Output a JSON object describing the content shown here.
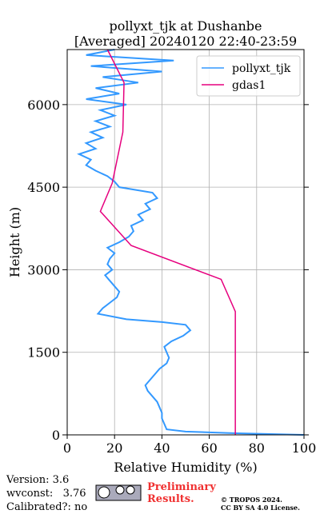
{
  "chart_data": {
    "type": "line",
    "orientation": "vertical",
    "title": "pollyxt_tjk at Dushanbe",
    "subtitle": "[Averaged] 20240120 22:40-23:59",
    "x_label": "Relative Humidity (%)",
    "y_label": "Height (m)",
    "xlim": [
      0,
      100
    ],
    "xticks": [
      0,
      20,
      40,
      60,
      80,
      100
    ],
    "ylim": [
      0,
      7000
    ],
    "yticks": [
      0,
      1500,
      3000,
      4500,
      6000
    ],
    "grid": true,
    "legend": "upper right",
    "series": [
      {
        "name": "pollyxt_tjk",
        "color": "#3399ff",
        "heights": [
          0,
          30,
          60,
          100,
          200,
          300,
          400,
          500,
          600,
          700,
          800,
          900,
          1000,
          1100,
          1200,
          1300,
          1400,
          1500,
          1600,
          1700,
          1800,
          1900,
          2000,
          2050,
          2100,
          2200,
          2300,
          2400,
          2500,
          2600,
          2700,
          2800,
          2900,
          3000,
          3100,
          3200,
          3300,
          3400,
          3500,
          3600,
          3700,
          3800,
          3900,
          4000,
          4100,
          4200,
          4300,
          4400,
          4500,
          4600,
          4700,
          4800,
          4900,
          5000,
          5100,
          5200,
          5300,
          5400,
          5500,
          5600,
          5700,
          5800,
          5900,
          6000,
          6100,
          6200,
          6300,
          6400,
          6500,
          6600,
          6700,
          6800,
          6900,
          7000
        ],
        "values": [
          100,
          70,
          50,
          42,
          41,
          40,
          40,
          39,
          38,
          36,
          34,
          33,
          35,
          37,
          39,
          42,
          43,
          42,
          41,
          44,
          49,
          52,
          50,
          40,
          25,
          13,
          15,
          18,
          21,
          22,
          20,
          18,
          16,
          19,
          17,
          18,
          20,
          17,
          22,
          26,
          28,
          27,
          32,
          30,
          35,
          33,
          38,
          36,
          22,
          20,
          17,
          12,
          8,
          10,
          5,
          12,
          8,
          15,
          10,
          18,
          12,
          20,
          14,
          25,
          8,
          22,
          12,
          30,
          15,
          40,
          10,
          45,
          8,
          20
        ]
      },
      {
        "name": "gdas1",
        "color": "#e6007e",
        "heights": [
          0,
          2240,
          2825,
          3440,
          4060,
          4570,
          5500,
          6400,
          7000
        ],
        "values": [
          71,
          71,
          65,
          27,
          14,
          19,
          23.5,
          24,
          17
        ]
      }
    ]
  },
  "footer": {
    "version": "Version: 3.6",
    "wvconst": "wvconst:   3.76",
    "calibrated": "Calibrated?: no",
    "preliminary": "Preliminary Results.",
    "copyright": "© TROPOS 2024.",
    "license": "CC BY SA 4.0 License."
  }
}
